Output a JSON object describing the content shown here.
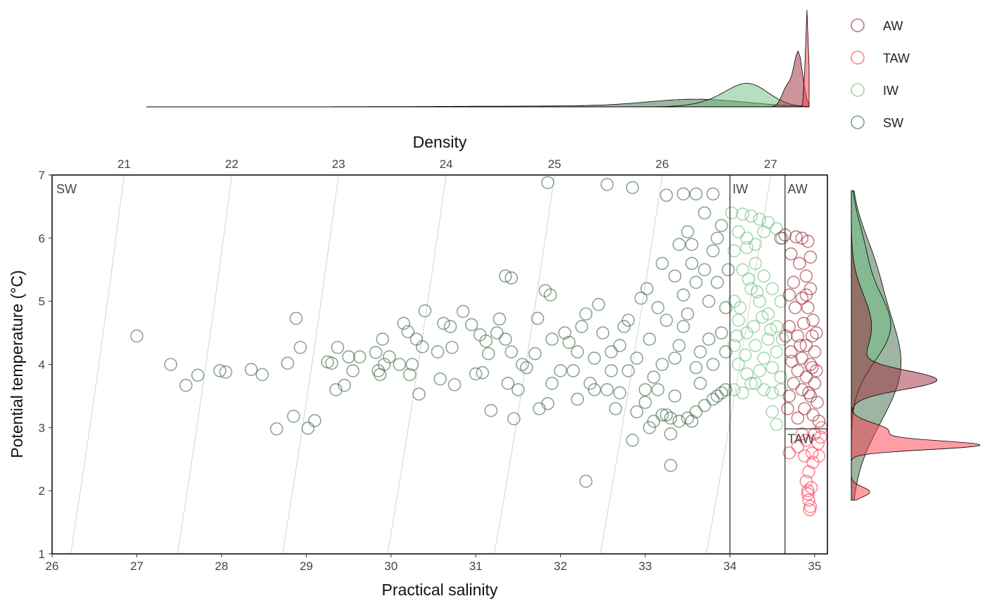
{
  "chart_data": {
    "type": "scatter",
    "title": "",
    "xlabel": "Practical salinity",
    "ylabel": "Potential temperature (°C)",
    "top_axis_label": "Density",
    "xlim": [
      26,
      35.15
    ],
    "ylim": [
      1,
      7
    ],
    "x_ticks": [
      26,
      27,
      28,
      29,
      30,
      31,
      32,
      33,
      34,
      35
    ],
    "y_ticks": [
      1,
      2,
      3,
      4,
      5,
      6,
      7
    ],
    "density_isolines": [
      {
        "label": "21",
        "x_at_t1": 26.22,
        "x_at_t7": 26.85
      },
      {
        "label": "22",
        "x_at_t1": 27.48,
        "x_at_t7": 28.12
      },
      {
        "label": "23",
        "x_at_t1": 28.72,
        "x_at_t7": 29.38
      },
      {
        "label": "24",
        "x_at_t1": 29.96,
        "x_at_t7": 30.65
      },
      {
        "label": "25",
        "x_at_t1": 31.22,
        "x_at_t7": 31.93
      },
      {
        "label": "26",
        "x_at_t1": 32.47,
        "x_at_t7": 33.2
      },
      {
        "label": "27",
        "x_at_t1": 33.72,
        "x_at_t7": 34.48
      }
    ],
    "region_boundaries": [
      34.0,
      34.65
    ],
    "region_labels": [
      {
        "text": "SW",
        "x": 26.05,
        "y": 6.78
      },
      {
        "text": "IW",
        "x": 34.03,
        "y": 6.78
      },
      {
        "text": "AW",
        "x": 34.68,
        "y": 6.78
      },
      {
        "text": "TAW",
        "x": 34.68,
        "y": 2.82
      }
    ],
    "legend_position": "top-right",
    "series": [
      {
        "name": "AW",
        "color": "#9e2a3a",
        "points": [
          [
            34.65,
            6.05
          ],
          [
            34.78,
            6.02
          ],
          [
            34.85,
            6.0
          ],
          [
            34.92,
            5.95
          ],
          [
            34.72,
            5.75
          ],
          [
            34.82,
            5.6
          ],
          [
            34.9,
            5.4
          ],
          [
            34.95,
            5.2
          ],
          [
            34.75,
            5.3
          ],
          [
            34.85,
            5.05
          ],
          [
            34.92,
            4.9
          ],
          [
            34.98,
            4.7
          ],
          [
            34.7,
            4.6
          ],
          [
            34.8,
            4.45
          ],
          [
            34.9,
            4.3
          ],
          [
            35.0,
            4.2
          ],
          [
            34.66,
            4.45
          ],
          [
            34.72,
            4.2
          ],
          [
            34.85,
            4.1
          ],
          [
            34.95,
            4.0
          ],
          [
            35.02,
            3.9
          ],
          [
            34.8,
            3.9
          ],
          [
            34.9,
            3.8
          ],
          [
            35.0,
            3.7
          ],
          [
            34.75,
            3.7
          ],
          [
            34.85,
            3.6
          ],
          [
            34.95,
            3.5
          ],
          [
            35.03,
            3.4
          ],
          [
            34.7,
            3.5
          ],
          [
            34.88,
            3.3
          ],
          [
            34.98,
            3.2
          ],
          [
            35.05,
            3.1
          ],
          [
            34.8,
            3.15
          ],
          [
            34.68,
            3.3
          ],
          [
            34.93,
            3.55
          ],
          [
            34.77,
            4.9
          ],
          [
            34.87,
            4.65
          ],
          [
            34.97,
            4.45
          ],
          [
            34.7,
            5.1
          ],
          [
            34.6,
            6.0
          ],
          [
            34.95,
            5.7
          ],
          [
            34.9,
            5.1
          ],
          [
            35.02,
            4.5
          ],
          [
            34.83,
            4.3
          ],
          [
            34.73,
            4.05
          ],
          [
            34.97,
            3.95
          ]
        ]
      },
      {
        "name": "TAW",
        "color": "#ff3b50",
        "points": [
          [
            34.7,
            2.6
          ],
          [
            34.8,
            2.7
          ],
          [
            34.9,
            2.8
          ],
          [
            35.0,
            2.9
          ],
          [
            35.08,
            3.0
          ],
          [
            35.05,
            2.55
          ],
          [
            34.98,
            2.45
          ],
          [
            34.93,
            2.3
          ],
          [
            34.9,
            2.15
          ],
          [
            34.92,
            2.0
          ],
          [
            34.93,
            1.85
          ],
          [
            34.95,
            1.75
          ],
          [
            34.94,
            1.7
          ],
          [
            34.97,
            2.6
          ],
          [
            35.04,
            2.75
          ],
          [
            34.88,
            2.55
          ],
          [
            35.07,
            2.85
          ],
          [
            34.96,
            2.05
          ],
          [
            34.92,
            1.95
          ],
          [
            34.85,
            2.9
          ]
        ]
      },
      {
        "name": "IW",
        "color": "#6cc07e",
        "points": [
          [
            34.02,
            6.4
          ],
          [
            34.15,
            6.38
          ],
          [
            34.25,
            6.35
          ],
          [
            34.35,
            6.3
          ],
          [
            34.45,
            6.25
          ],
          [
            34.55,
            6.15
          ],
          [
            34.62,
            6.0
          ],
          [
            34.1,
            6.1
          ],
          [
            34.2,
            5.85
          ],
          [
            34.3,
            5.6
          ],
          [
            34.4,
            5.4
          ],
          [
            34.5,
            5.2
          ],
          [
            34.6,
            5.0
          ],
          [
            34.05,
            5.8
          ],
          [
            34.15,
            5.5
          ],
          [
            34.25,
            5.2
          ],
          [
            34.35,
            5.0
          ],
          [
            34.45,
            4.8
          ],
          [
            34.55,
            4.6
          ],
          [
            34.62,
            4.4
          ],
          [
            34.05,
            5.0
          ],
          [
            34.1,
            4.7
          ],
          [
            34.2,
            4.5
          ],
          [
            34.3,
            4.3
          ],
          [
            34.4,
            4.1
          ],
          [
            34.5,
            3.95
          ],
          [
            34.6,
            3.8
          ],
          [
            34.05,
            4.3
          ],
          [
            34.1,
            4.0
          ],
          [
            34.2,
            3.85
          ],
          [
            34.3,
            3.7
          ],
          [
            34.4,
            3.6
          ],
          [
            34.5,
            3.55
          ],
          [
            34.05,
            3.6
          ],
          [
            34.15,
            3.55
          ],
          [
            34.25,
            3.7
          ],
          [
            34.35,
            3.9
          ],
          [
            34.45,
            4.4
          ],
          [
            34.55,
            4.2
          ],
          [
            34.6,
            3.6
          ],
          [
            34.5,
            3.25
          ],
          [
            34.55,
            3.05
          ],
          [
            34.2,
            6.0
          ],
          [
            34.3,
            5.9
          ],
          [
            34.4,
            6.1
          ],
          [
            34.12,
            4.9
          ],
          [
            34.28,
            4.6
          ],
          [
            34.38,
            4.75
          ],
          [
            34.48,
            4.55
          ],
          [
            34.08,
            4.45
          ],
          [
            34.18,
            4.15
          ],
          [
            34.22,
            5.35
          ],
          [
            34.32,
            5.15
          ]
        ]
      },
      {
        "name": "SW",
        "color": "#3f6b48",
        "points": [
          [
            27.0,
            4.45
          ],
          [
            27.4,
            4.0
          ],
          [
            27.58,
            3.67
          ],
          [
            27.72,
            3.83
          ],
          [
            27.98,
            3.9
          ],
          [
            28.05,
            3.88
          ],
          [
            28.35,
            3.92
          ],
          [
            28.48,
            3.84
          ],
          [
            28.65,
            2.98
          ],
          [
            28.78,
            4.02
          ],
          [
            28.85,
            3.18
          ],
          [
            28.88,
            4.73
          ],
          [
            28.93,
            4.27
          ],
          [
            29.02,
            2.99
          ],
          [
            29.1,
            3.11
          ],
          [
            29.25,
            4.04
          ],
          [
            29.3,
            4.02
          ],
          [
            29.35,
            3.6
          ],
          [
            29.37,
            4.27
          ],
          [
            29.45,
            3.67
          ],
          [
            29.5,
            4.12
          ],
          [
            29.55,
            3.9
          ],
          [
            29.63,
            4.12
          ],
          [
            29.82,
            4.19
          ],
          [
            29.85,
            3.9
          ],
          [
            29.87,
            3.84
          ],
          [
            29.9,
            4.4
          ],
          [
            29.92,
            4.0
          ],
          [
            29.98,
            4.12
          ],
          [
            30.1,
            4.0
          ],
          [
            30.15,
            4.65
          ],
          [
            30.2,
            4.52
          ],
          [
            30.22,
            3.84
          ],
          [
            30.25,
            4.0
          ],
          [
            30.3,
            4.4
          ],
          [
            30.33,
            3.53
          ],
          [
            30.37,
            4.28
          ],
          [
            30.4,
            4.85
          ],
          [
            30.55,
            4.2
          ],
          [
            30.58,
            3.77
          ],
          [
            30.62,
            4.65
          ],
          [
            30.7,
            4.6
          ],
          [
            30.72,
            4.27
          ],
          [
            30.75,
            3.68
          ],
          [
            30.85,
            4.84
          ],
          [
            30.95,
            4.63
          ],
          [
            31.0,
            3.85
          ],
          [
            31.05,
            4.47
          ],
          [
            31.08,
            3.87
          ],
          [
            31.12,
            4.37
          ],
          [
            31.15,
            4.17
          ],
          [
            31.18,
            3.27
          ],
          [
            31.25,
            4.5
          ],
          [
            31.28,
            4.72
          ],
          [
            31.35,
            4.4
          ],
          [
            31.35,
            5.4
          ],
          [
            31.38,
            3.7
          ],
          [
            31.42,
            5.37
          ],
          [
            31.42,
            4.2
          ],
          [
            31.45,
            3.14
          ],
          [
            31.5,
            3.6
          ],
          [
            31.55,
            4.0
          ],
          [
            31.7,
            4.17
          ],
          [
            31.73,
            4.73
          ],
          [
            31.75,
            3.3
          ],
          [
            31.82,
            5.17
          ],
          [
            31.88,
            5.1
          ],
          [
            31.85,
            3.38
          ],
          [
            31.85,
            6.88
          ],
          [
            31.9,
            3.7
          ],
          [
            32.05,
            4.5
          ],
          [
            32.1,
            4.35
          ],
          [
            32.15,
            3.9
          ],
          [
            32.2,
            3.45
          ],
          [
            32.25,
            4.6
          ],
          [
            32.3,
            4.8
          ],
          [
            32.35,
            3.7
          ],
          [
            32.4,
            4.1
          ],
          [
            32.45,
            4.95
          ],
          [
            32.5,
            4.5
          ],
          [
            32.55,
            3.6
          ],
          [
            32.6,
            4.2
          ],
          [
            32.65,
            3.3
          ],
          [
            32.7,
            4.3
          ],
          [
            32.75,
            4.6
          ],
          [
            32.8,
            3.9
          ],
          [
            32.85,
            2.8
          ],
          [
            32.9,
            4.1
          ],
          [
            32.95,
            5.05
          ],
          [
            32.3,
            2.15
          ],
          [
            33.0,
            3.4
          ],
          [
            33.02,
            5.2
          ],
          [
            33.05,
            4.4
          ],
          [
            33.1,
            3.8
          ],
          [
            33.15,
            4.9
          ],
          [
            33.2,
            5.6
          ],
          [
            33.25,
            3.2
          ],
          [
            33.3,
            2.4
          ],
          [
            33.3,
            2.9
          ],
          [
            33.35,
            3.5
          ],
          [
            33.4,
            5.9
          ],
          [
            33.45,
            4.6
          ],
          [
            33.5,
            6.1
          ],
          [
            33.55,
            3.1
          ],
          [
            33.6,
            5.3
          ],
          [
            33.65,
            3.7
          ],
          [
            33.7,
            6.4
          ],
          [
            33.75,
            4.4
          ],
          [
            33.8,
            5.8
          ],
          [
            33.85,
            3.5
          ],
          [
            33.9,
            6.2
          ],
          [
            33.95,
            4.9
          ],
          [
            33.98,
            5.5
          ],
          [
            33.5,
            3.15
          ],
          [
            33.6,
            3.25
          ],
          [
            33.7,
            3.35
          ],
          [
            33.8,
            3.45
          ],
          [
            33.9,
            3.55
          ],
          [
            33.4,
            3.1
          ],
          [
            33.3,
            3.15
          ],
          [
            33.2,
            3.2
          ],
          [
            33.1,
            3.1
          ],
          [
            33.05,
            3.0
          ],
          [
            33.45,
            5.1
          ],
          [
            33.55,
            5.6
          ],
          [
            33.65,
            4.2
          ],
          [
            33.75,
            5.0
          ],
          [
            33.85,
            6.0
          ],
          [
            33.95,
            4.2
          ],
          [
            33.35,
            4.1
          ],
          [
            33.25,
            4.7
          ],
          [
            33.15,
            3.6
          ],
          [
            33.45,
            6.7
          ],
          [
            33.6,
            6.7
          ],
          [
            33.8,
            6.7
          ],
          [
            33.25,
            6.68
          ],
          [
            32.55,
            6.85
          ],
          [
            32.85,
            6.8
          ],
          [
            33.6,
            3.95
          ],
          [
            33.9,
            4.5
          ],
          [
            33.7,
            5.5
          ],
          [
            33.5,
            4.8
          ],
          [
            33.8,
            4.0
          ],
          [
            33.4,
            4.3
          ],
          [
            32.8,
            4.7
          ],
          [
            32.6,
            3.9
          ],
          [
            32.4,
            3.6
          ],
          [
            32.2,
            4.2
          ],
          [
            32.0,
            3.9
          ],
          [
            31.9,
            4.4
          ],
          [
            31.6,
            3.95
          ],
          [
            32.7,
            3.55
          ],
          [
            32.9,
            3.25
          ],
          [
            33.0,
            3.6
          ],
          [
            33.2,
            4.0
          ],
          [
            33.95,
            3.6
          ],
          [
            33.85,
            5.3
          ],
          [
            33.55,
            5.9
          ],
          [
            33.35,
            5.4
          ]
        ]
      }
    ]
  },
  "marginal_top": {
    "x_range": [
      21.2,
      27.4
    ],
    "series": [
      {
        "name": "SW",
        "peak_x": 26.4
      },
      {
        "name": "IW",
        "peak_x": 26.9
      },
      {
        "name": "AW",
        "peak_x": 27.3
      },
      {
        "name": "TAW",
        "peak_x": 27.38
      }
    ]
  },
  "marginal_right": {
    "y_range": [
      1.85,
      6.75
    ],
    "series": [
      {
        "name": "SW",
        "peak_y": 4.0
      },
      {
        "name": "IW",
        "peak_y": 4.6
      },
      {
        "name": "AW",
        "peak_y": 3.75
      },
      {
        "name": "TAW",
        "peak_y": 2.72
      }
    ]
  },
  "legend": [
    {
      "label": "AW",
      "color": "#9e2a3a"
    },
    {
      "label": "TAW",
      "color": "#ff3b50"
    },
    {
      "label": "IW",
      "color": "#6cc07e"
    },
    {
      "label": "SW",
      "color": "#3f6b48"
    }
  ]
}
